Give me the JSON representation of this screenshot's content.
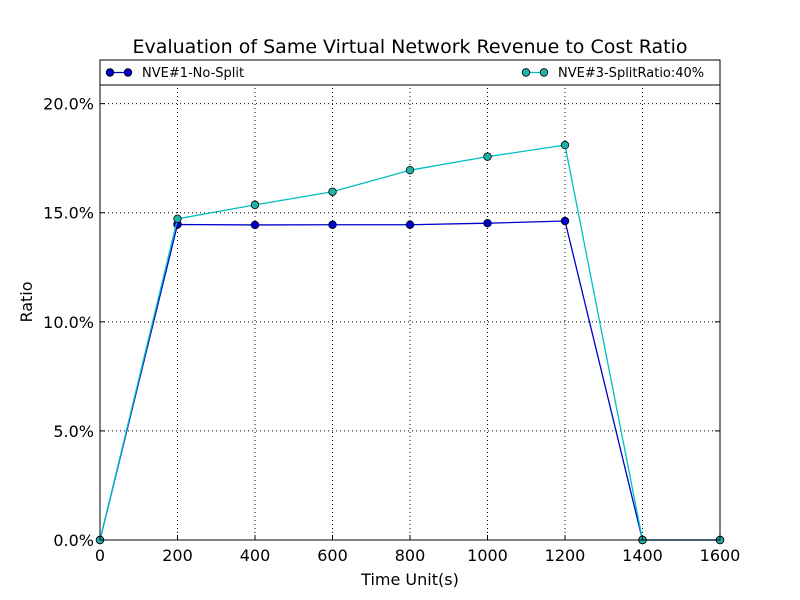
{
  "chart_data": {
    "type": "line",
    "title": "Evaluation of Same Virtual Network Revenue to Cost Ratio",
    "xlabel": "Time Unit(s)",
    "ylabel": "Ratio",
    "xlim": [
      0,
      1600
    ],
    "ylim": [
      0,
      0.22
    ],
    "x_ticks": [
      0,
      200,
      400,
      600,
      800,
      1000,
      1200,
      1400,
      1600
    ],
    "x_tick_labels": [
      "0",
      "200",
      "400",
      "600",
      "800",
      "1000",
      "1200",
      "1400",
      "1600"
    ],
    "y_ticks": [
      0.0,
      0.05,
      0.1,
      0.15,
      0.2
    ],
    "y_tick_labels": [
      "0.0%",
      "5.0%",
      "10.0%",
      "15.0%",
      "20.0%"
    ],
    "grid": true,
    "legend_position": "top (single row above plot)",
    "x": [
      0,
      200,
      400,
      600,
      800,
      1000,
      1200,
      1400,
      1600
    ],
    "series": [
      {
        "name": "NVE#1-No-Split",
        "color": "#0000cc",
        "marker_color": "#0000cc",
        "values": [
          0.0,
          0.1446,
          0.1444,
          0.1445,
          0.1445,
          0.1452,
          0.1462,
          0.0,
          0.0
        ]
      },
      {
        "name": "NVE#3-SplitRatio:40%",
        "color": "#00bfbf",
        "marker_color": "#20b2aa",
        "values": [
          0.0,
          0.1472,
          0.1536,
          0.1596,
          0.1695,
          0.1757,
          0.181,
          0.0,
          0.0
        ]
      }
    ]
  }
}
